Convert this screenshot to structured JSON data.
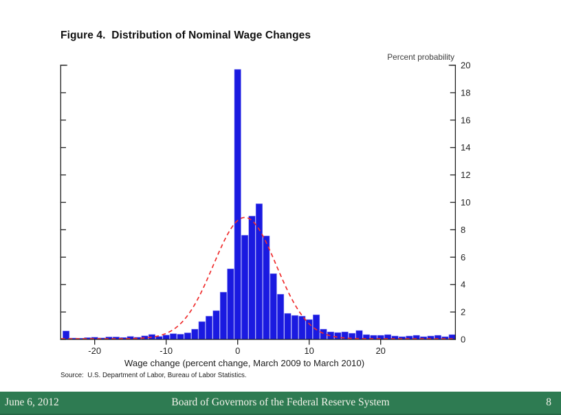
{
  "slide": {
    "title": "Figure 4.  Distribution of Nominal Wage Changes"
  },
  "chart_data": {
    "type": "bar",
    "title": "Figure 4.  Distribution of Nominal Wage Changes",
    "y_axis_title": "Percent probability",
    "xlabel": "Wage change (percent change, March 2009 to March 2010)",
    "source": "Source:  U.S. Department of Labor, Bureau of Labor Statistics.",
    "xlim": [
      -24.75,
      30.45
    ],
    "ylim": [
      0,
      20
    ],
    "x_ticks": [
      -20,
      -10,
      0,
      10,
      20
    ],
    "y_ticks": [
      0,
      2,
      4,
      6,
      8,
      10,
      12,
      14,
      16,
      18,
      20
    ],
    "grid": false,
    "legend": "none",
    "bar_width": 1,
    "bars": {
      "centers": [
        -24,
        -23,
        -22,
        -21,
        -20,
        -19,
        -18,
        -17,
        -16,
        -15,
        -14,
        -13,
        -12,
        -11,
        -10,
        -9,
        -8,
        -7,
        -6,
        -5,
        -4,
        -3,
        -2,
        -1,
        0,
        1,
        2,
        3,
        4,
        5,
        6,
        7,
        8,
        9,
        10,
        11,
        12,
        13,
        14,
        15,
        16,
        17,
        18,
        19,
        20,
        21,
        22,
        23,
        24,
        25,
        26,
        27,
        28,
        29,
        30
      ],
      "values": [
        0.62,
        0.1,
        0.09,
        0.13,
        0.16,
        0.11,
        0.18,
        0.18,
        0.14,
        0.22,
        0.16,
        0.26,
        0.36,
        0.22,
        0.32,
        0.42,
        0.38,
        0.48,
        0.75,
        1.3,
        1.7,
        2.1,
        3.45,
        5.15,
        19.7,
        7.6,
        9.0,
        9.9,
        7.55,
        4.8,
        3.3,
        1.9,
        1.75,
        1.7,
        1.45,
        1.8,
        0.75,
        0.55,
        0.5,
        0.55,
        0.45,
        0.65,
        0.35,
        0.3,
        0.3,
        0.35,
        0.25,
        0.2,
        0.25,
        0.3,
        0.2,
        0.25,
        0.3,
        0.2,
        0.35
      ]
    },
    "overlay_curve": {
      "type": "normal",
      "mean": 1.0,
      "sd": 4.4,
      "peak": 8.85,
      "style": "dashed"
    },
    "colors": {
      "bar_fill": "#1a1ae0",
      "bar_edge": "#8585f2",
      "curve": "#ef2c2c",
      "axis": "#1f1f1f",
      "tick_label": "#222222"
    }
  },
  "footer": {
    "date": "June 6, 2012",
    "organization": "Board of Governors of the Federal Reserve System",
    "page": "8",
    "bar_color": "#2e7b52"
  }
}
